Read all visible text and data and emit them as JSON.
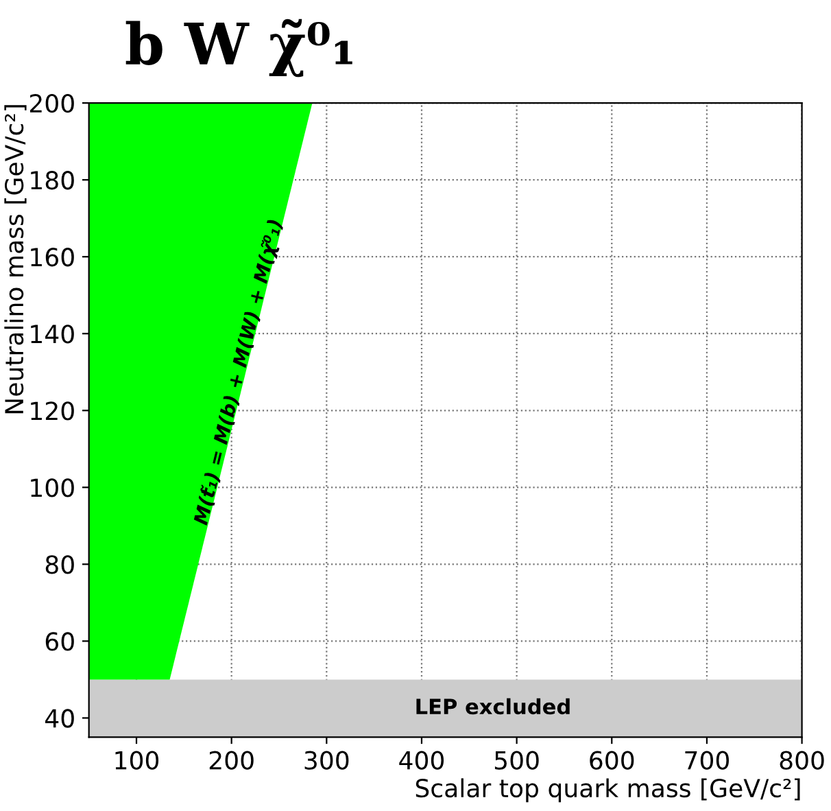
{
  "chart_data": {
    "type": "area",
    "title": "b W χ̃⁰₁",
    "xlabel": "Scalar top quark mass [GeV/c²]",
    "ylabel": "Neutralino mass [GeV/c²]",
    "orientation": "horizontal",
    "series": [
      {
        "color": "#00ff00",
        "x": [
          50,
          200
        ],
        "values": [
          135,
          285
        ]
      }
    ],
    "xlim": [
      50,
      800
    ],
    "ylim": [
      35,
      200
    ],
    "xticks": [
      100,
      200,
      300,
      400,
      500,
      600,
      700,
      800
    ],
    "yticks": [
      40,
      60,
      80,
      100,
      120,
      140,
      160,
      180,
      200
    ],
    "bands": [
      {
        "axis": "y",
        "from": 35,
        "to": 50,
        "label": "LEP excluded",
        "color": "#cccccc"
      }
    ],
    "annotations": [
      {
        "text": "M(t̃₁) = M(b) + M(W) + M(χ̃⁰₁)",
        "x": 208,
        "y": 130
      }
    ],
    "grid": true
  }
}
